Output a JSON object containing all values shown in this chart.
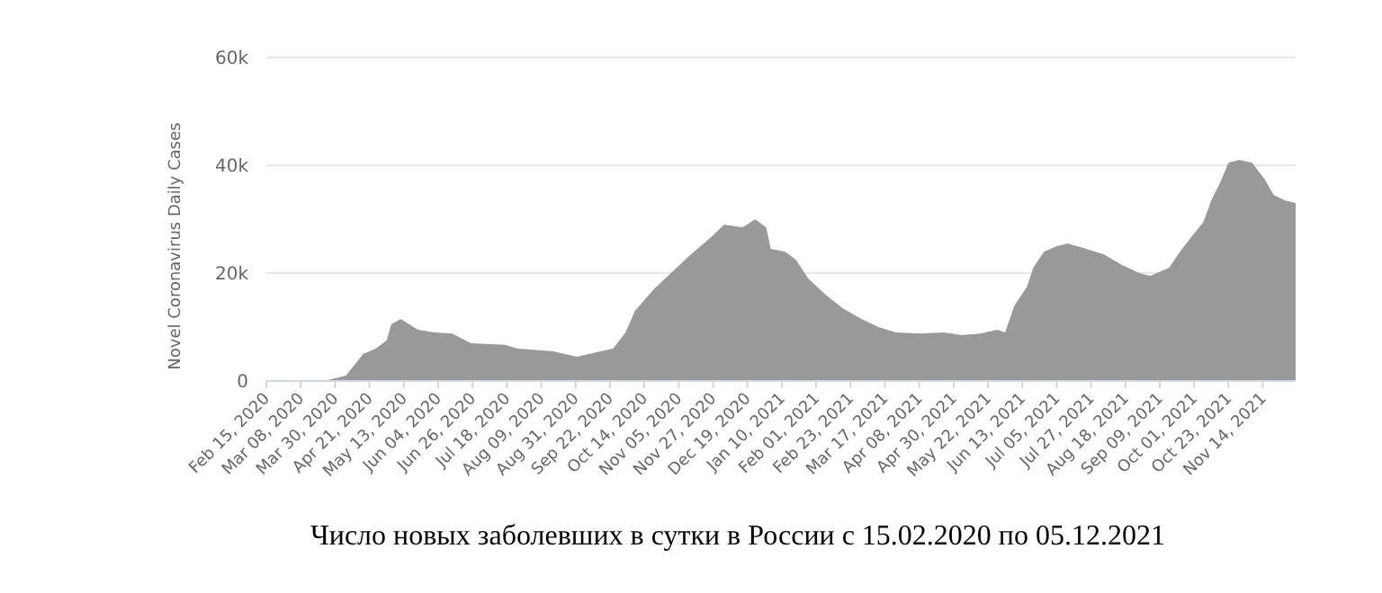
{
  "chart_data": {
    "type": "area",
    "ylabel": "Novel Coronavirus Daily Cases",
    "annotations": [
      "Число новых заболевших в сутки в России с 15.02.2020 по 05.12.2021"
    ],
    "x": [
      "2020-02-15",
      "2020-03-21",
      "2020-03-26",
      "2020-04-06",
      "2020-04-17",
      "2020-04-25",
      "2020-05-02",
      "2020-05-05",
      "2020-05-11",
      "2020-05-22",
      "2020-06-02",
      "2020-06-13",
      "2020-06-25",
      "2020-07-17",
      "2020-07-25",
      "2020-08-17",
      "2020-08-24",
      "2020-09-01",
      "2020-09-16",
      "2020-09-24",
      "2020-10-02",
      "2020-10-08",
      "2020-10-20",
      "2020-10-31",
      "2020-11-11",
      "2020-11-19",
      "2020-11-27",
      "2020-12-04",
      "2020-12-16",
      "2020-12-24",
      "2020-12-31",
      "2021-01-03",
      "2021-01-12",
      "2021-01-19",
      "2021-01-27",
      "2021-02-07",
      "2021-02-18",
      "2021-03-02",
      "2021-03-13",
      "2021-03-24",
      "2021-04-08",
      "2021-04-24",
      "2021-05-05",
      "2021-05-17",
      "2021-05-28",
      "2021-06-02",
      "2021-06-08",
      "2021-06-16",
      "2021-06-20",
      "2021-06-27",
      "2021-07-05",
      "2021-07-12",
      "2021-07-24",
      "2021-08-04",
      "2021-08-16",
      "2021-08-27",
      "2021-09-03",
      "2021-09-15",
      "2021-09-22",
      "2021-09-30",
      "2021-10-07",
      "2021-10-12",
      "2021-10-18",
      "2021-10-23",
      "2021-10-30",
      "2021-11-07",
      "2021-11-15",
      "2021-11-21",
      "2021-11-28",
      "2021-12-05"
    ],
    "series": [
      {
        "color": "#999999",
        "values": [
          0,
          100,
          200,
          1000,
          5000,
          6000,
          7500,
          10500,
          11500,
          9500,
          9000,
          8800,
          7000,
          6700,
          6000,
          5500,
          5000,
          4500,
          5500,
          6000,
          9000,
          13000,
          17000,
          20000,
          23000,
          25000,
          27000,
          29000,
          28500,
          30000,
          28500,
          24500,
          24000,
          22500,
          19000,
          16000,
          13500,
          11500,
          10000,
          9000,
          8800,
          9000,
          8500,
          8800,
          9500,
          9000,
          14000,
          17500,
          21000,
          24000,
          25000,
          25500,
          24500,
          23500,
          21500,
          20000,
          19500,
          21000,
          24000,
          27000,
          29500,
          33500,
          37000,
          40500,
          41000,
          40500,
          37500,
          34500,
          33500,
          33000
        ]
      }
    ],
    "xlim": [
      "2020-02-15",
      "2021-12-05"
    ],
    "xticks": [
      {
        "value": "2020-02-15",
        "label": "Feb 15, 2020"
      },
      {
        "value": "2020-03-08",
        "label": "Mar 08, 2020"
      },
      {
        "value": "2020-03-30",
        "label": "Mar 30, 2020"
      },
      {
        "value": "2020-04-21",
        "label": "Apr 21, 2020"
      },
      {
        "value": "2020-05-13",
        "label": "May 13, 2020"
      },
      {
        "value": "2020-06-04",
        "label": "Jun 04, 2020"
      },
      {
        "value": "2020-06-26",
        "label": "Jun 26, 2020"
      },
      {
        "value": "2020-07-18",
        "label": "Jul 18, 2020"
      },
      {
        "value": "2020-08-09",
        "label": "Aug 09, 2020"
      },
      {
        "value": "2020-08-31",
        "label": "Aug 31, 2020"
      },
      {
        "value": "2020-09-22",
        "label": "Sep 22, 2020"
      },
      {
        "value": "2020-10-14",
        "label": "Oct 14, 2020"
      },
      {
        "value": "2020-11-05",
        "label": "Nov 05, 2020"
      },
      {
        "value": "2020-11-27",
        "label": "Nov 27, 2020"
      },
      {
        "value": "2020-12-19",
        "label": "Dec 19, 2020"
      },
      {
        "value": "2021-01-10",
        "label": "Jan 10, 2021"
      },
      {
        "value": "2021-02-01",
        "label": "Feb 01, 2021"
      },
      {
        "value": "2021-02-23",
        "label": "Feb 23, 2021"
      },
      {
        "value": "2021-03-17",
        "label": "Mar 17, 2021"
      },
      {
        "value": "2021-04-08",
        "label": "Apr 08, 2021"
      },
      {
        "value": "2021-04-30",
        "label": "Apr 30, 2021"
      },
      {
        "value": "2021-05-22",
        "label": "May 22, 2021"
      },
      {
        "value": "2021-06-13",
        "label": "Jun 13, 2021"
      },
      {
        "value": "2021-07-05",
        "label": "Jul 05, 2021"
      },
      {
        "value": "2021-07-27",
        "label": "Jul 27, 2021"
      },
      {
        "value": "2021-08-18",
        "label": "Aug 18, 2021"
      },
      {
        "value": "2021-09-09",
        "label": "Sep 09, 2021"
      },
      {
        "value": "2021-10-01",
        "label": "Oct 01, 2021"
      },
      {
        "value": "2021-10-23",
        "label": "Oct 23, 2021"
      },
      {
        "value": "2021-11-14",
        "label": "Nov 14, 2021"
      }
    ],
    "ylim": [
      0,
      60000
    ],
    "yticks": [
      {
        "value": 0,
        "label": "0"
      },
      {
        "value": 20000,
        "label": "20k"
      },
      {
        "value": 40000,
        "label": "40k"
      },
      {
        "value": 60000,
        "label": "60k"
      }
    ],
    "grid": "y"
  }
}
